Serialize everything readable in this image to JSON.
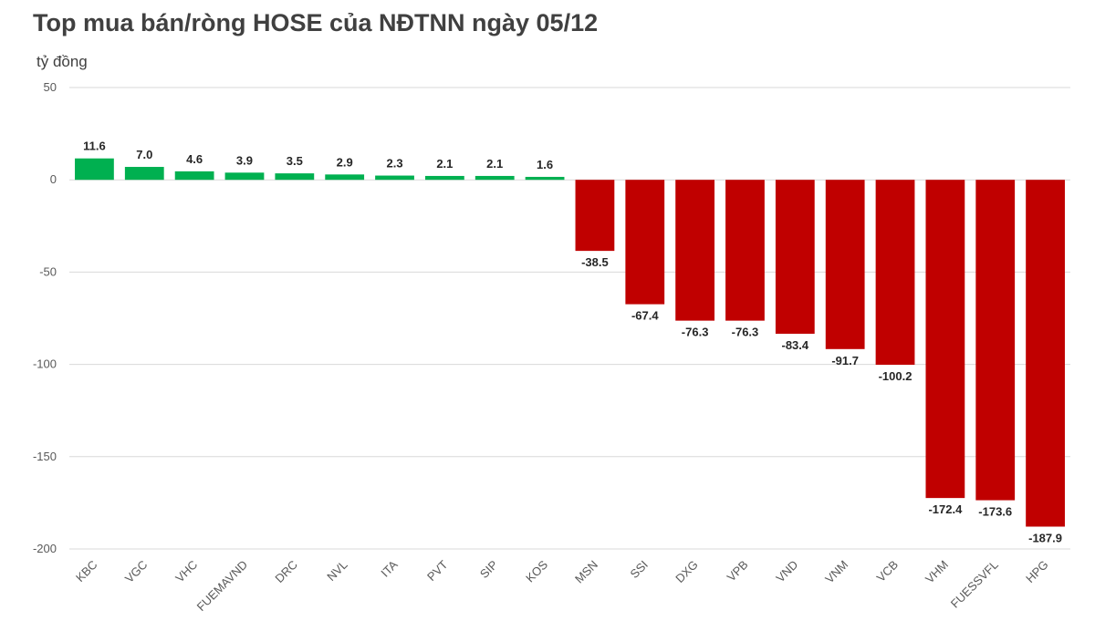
{
  "title": "Top mua bán/ròng HOSE của NĐTNN ngày 05/12",
  "unit_label": "tỷ đồng",
  "colors": {
    "positive": "#00B050",
    "negative": "#C00000",
    "grid": "#D9D9D9"
  },
  "chart_data": {
    "type": "bar",
    "title": "Top mua bán/ròng HOSE của NĐTNN ngày 05/12",
    "ylabel": "tỷ đồng",
    "xlabel": "",
    "ylim": [
      -200,
      50
    ],
    "yticks": [
      50,
      0,
      -50,
      -100,
      -150,
      -200
    ],
    "grid": true,
    "legend": "none",
    "categories": [
      "KBC",
      "VGC",
      "VHC",
      "FUEMAVND",
      "DRC",
      "NVL",
      "ITA",
      "PVT",
      "SIP",
      "KOS",
      "MSN",
      "SSI",
      "DXG",
      "VPB",
      "VND",
      "VNM",
      "VCB",
      "VHM",
      "FUESSVFL",
      "HPG"
    ],
    "values": [
      11.6,
      7.0,
      4.6,
      3.9,
      3.5,
      2.9,
      2.3,
      2.1,
      2.1,
      1.6,
      -38.5,
      -67.4,
      -76.3,
      -76.3,
      -83.4,
      -91.7,
      -100.2,
      -172.4,
      -173.6,
      -187.9
    ],
    "value_labels": [
      "11.6",
      "7.0",
      "4.6",
      "3.9",
      "3.5",
      "2.9",
      "2.3",
      "2.1",
      "2.1",
      "1.6",
      "-38.5",
      "-67.4",
      "-76.3",
      "-76.3",
      "-83.4",
      "-91.7",
      "-100.2",
      "-172.4",
      "-173.6",
      "-187.9"
    ]
  }
}
